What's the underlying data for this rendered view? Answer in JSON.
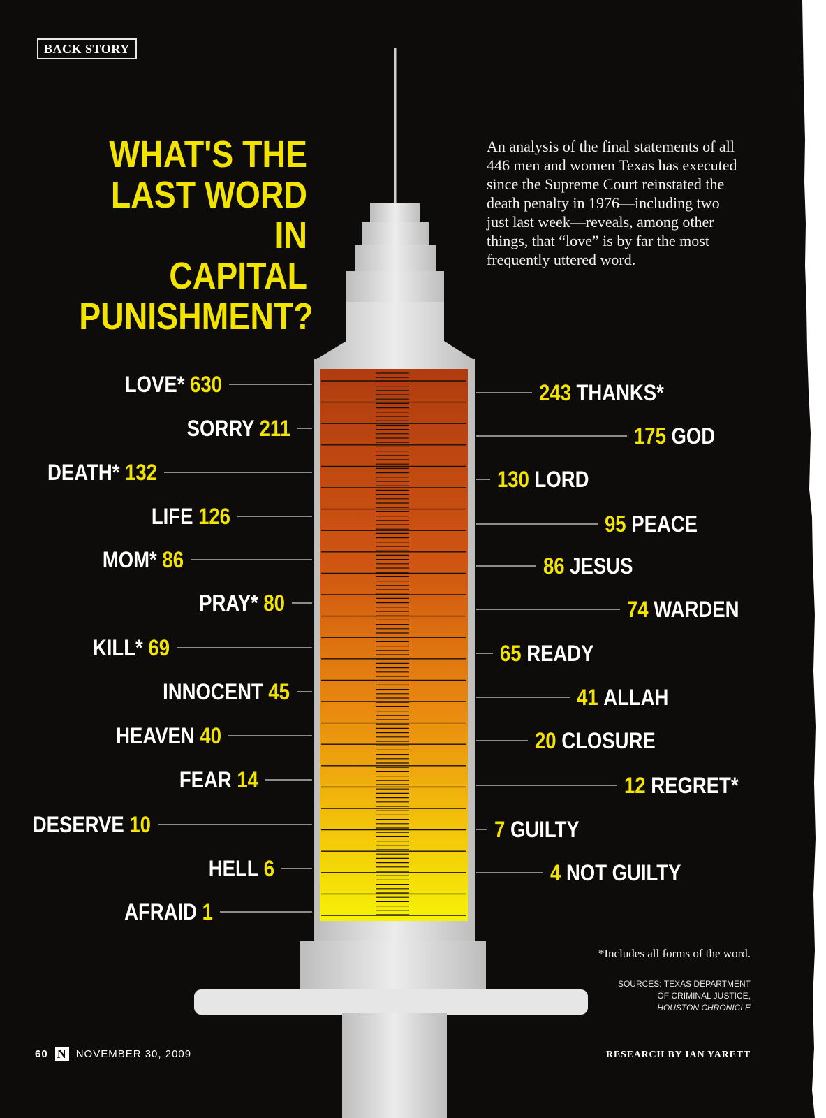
{
  "section_tag": "BACK STORY",
  "headline": [
    "WHAT'S THE",
    "LAST WORD IN",
    "CAPITAL",
    "PUNISHMENT?"
  ],
  "intro": "An analysis of the final statements of all 446 men and women Texas has executed since the Supreme Court reinstated the death penalty in 1976—including two just last week—reveals, among other things, that “love” is by far the most frequently uttered word.",
  "footnote": "*Includes all forms of the word.",
  "sources": {
    "line1": "SOURCES: TEXAS DEPARTMENT",
    "line2": "OF CRIMINAL JUSTICE,",
    "line3": "HOUSTON CHRONICLE"
  },
  "folio": {
    "page": "60",
    "logo": "N",
    "date": "NOVEMBER 30, 2009"
  },
  "credit": "RESEARCH BY IAN YARETT",
  "colors": {
    "background": "#0d0c0b",
    "accent_yellow": "#f2e300",
    "fluid_top": "#b8400e",
    "fluid_bottom": "#f5ee05",
    "syringe_body": "#dcdcdc"
  },
  "chart_data": {
    "type": "bar",
    "title": "WHAT'S THE LAST WORD IN CAPITAL PUNISHMENT?",
    "unit": "",
    "left_column": [
      {
        "word": "LOVE*",
        "count": 630
      },
      {
        "word": "SORRY",
        "count": 211
      },
      {
        "word": "DEATH*",
        "count": 132
      },
      {
        "word": "LIFE",
        "count": 126
      },
      {
        "word": "MOM*",
        "count": 86
      },
      {
        "word": "PRAY*",
        "count": 80
      },
      {
        "word": "KILL*",
        "count": 69
      },
      {
        "word": "INNOCENT",
        "count": 45
      },
      {
        "word": "HEAVEN",
        "count": 40
      },
      {
        "word": "FEAR",
        "count": 14
      },
      {
        "word": "DESERVE",
        "count": 10
      },
      {
        "word": "HELL",
        "count": 6
      },
      {
        "word": "AFRAID",
        "count": 1
      }
    ],
    "right_column": [
      {
        "word": "THANKS*",
        "count": 243
      },
      {
        "word": "GOD",
        "count": 175
      },
      {
        "word": "LORD",
        "count": 130
      },
      {
        "word": "PEACE",
        "count": 95
      },
      {
        "word": "JESUS",
        "count": 86
      },
      {
        "word": "WARDEN",
        "count": 74
      },
      {
        "word": "READY",
        "count": 65
      },
      {
        "word": "ALLAH",
        "count": 41
      },
      {
        "word": "CLOSURE",
        "count": 20
      },
      {
        "word": "REGRET*",
        "count": 12
      },
      {
        "word": "GUILTY",
        "count": 7
      },
      {
        "word": "NOT GUILTY",
        "count": 4
      }
    ]
  }
}
